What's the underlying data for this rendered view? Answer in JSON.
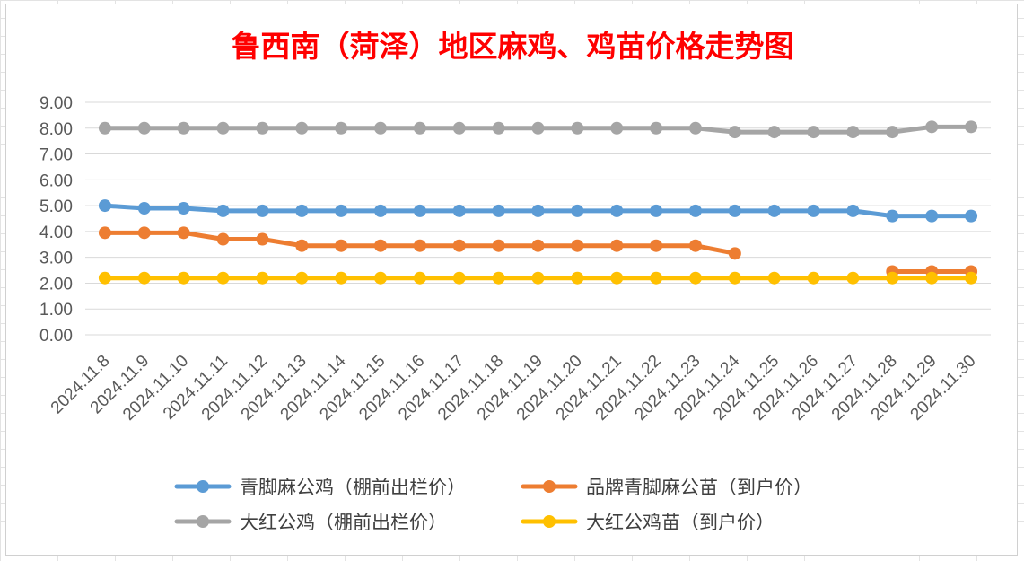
{
  "chart_data": {
    "type": "line",
    "title": "鲁西南（菏泽）地区麻鸡、鸡苗价格走势图",
    "xlabel": "",
    "ylabel": "",
    "ylim": [
      0,
      9
    ],
    "y_ticks": [
      "0.00",
      "1.00",
      "2.00",
      "3.00",
      "4.00",
      "5.00",
      "6.00",
      "7.00",
      "8.00",
      "9.00"
    ],
    "grid": "horizontal",
    "legend_position": "bottom",
    "categories": [
      "2024.11.8",
      "2024.11.9",
      "2024.11.10",
      "2024.11.11",
      "2024.11.12",
      "2024.11.13",
      "2024.11.14",
      "2024.11.15",
      "2024.11.16",
      "2024.11.17",
      "2024.11.18",
      "2024.11.19",
      "2024.11.20",
      "2024.11.21",
      "2024.11.22",
      "2024.11.23",
      "2024.11.24",
      "2024.11.25",
      "2024.11.26",
      "2024.11.27",
      "2024.11.28",
      "2024.11.29",
      "2024.11.30"
    ],
    "series": [
      {
        "name": "青脚麻公鸡（棚前出栏价）",
        "color": "#5b9bd5",
        "values": [
          5.0,
          4.9,
          4.9,
          4.8,
          4.8,
          4.8,
          4.8,
          4.8,
          4.8,
          4.8,
          4.8,
          4.8,
          4.8,
          4.8,
          4.8,
          4.8,
          4.8,
          4.8,
          4.8,
          4.8,
          4.6,
          4.6,
          4.6
        ]
      },
      {
        "name": "品牌青脚麻公苗（到户价）",
        "color": "#ed7d31",
        "values": [
          3.95,
          3.95,
          3.95,
          3.7,
          3.7,
          3.45,
          3.45,
          3.45,
          3.45,
          3.45,
          3.45,
          3.45,
          3.45,
          3.45,
          3.45,
          3.45,
          3.15,
          null,
          null,
          null,
          2.45,
          2.45,
          2.45
        ]
      },
      {
        "name": "大红公鸡（棚前出栏价）",
        "color": "#a5a5a5",
        "values": [
          8.0,
          8.0,
          8.0,
          8.0,
          8.0,
          8.0,
          8.0,
          8.0,
          8.0,
          8.0,
          8.0,
          8.0,
          8.0,
          8.0,
          8.0,
          8.0,
          7.85,
          7.85,
          7.85,
          7.85,
          7.85,
          8.05,
          8.05
        ]
      },
      {
        "name": "大红公鸡苗（到户价）",
        "color": "#ffc000",
        "values": [
          2.2,
          2.2,
          2.2,
          2.2,
          2.2,
          2.2,
          2.2,
          2.2,
          2.2,
          2.2,
          2.2,
          2.2,
          2.2,
          2.2,
          2.2,
          2.2,
          2.2,
          2.2,
          2.2,
          2.2,
          2.2,
          2.2,
          2.2
        ]
      }
    ]
  }
}
